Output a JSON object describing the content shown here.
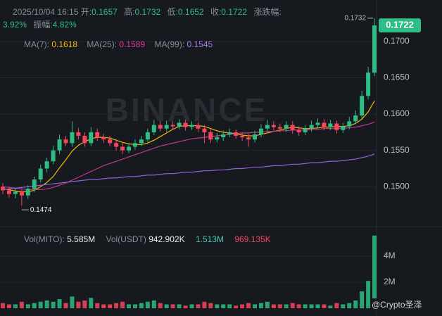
{
  "header": {
    "date": "2025/10/04 16:15",
    "open_label": "开:",
    "open": "0.1657",
    "high_label": "高:",
    "high": "0.1732",
    "low_label": "低:",
    "low": "0.1652",
    "close_label": "收:",
    "close": "0.1722",
    "change_label": "涨跌幅:",
    "change": "3.92%",
    "amp_label": "振幅:",
    "amp": "4.82%"
  },
  "ma_header": {
    "ma7_label": "MA(7):",
    "ma7": "0.1618",
    "ma25_label": "MA(25):",
    "ma25": "0.1589",
    "ma99_label": "MA(99):",
    "ma99": "0.1545"
  },
  "vol_header": {
    "vol_label": "Vol(MITO):",
    "vol": "5.585M",
    "usdt_label": "Vol(USDT)",
    "usdt": "942.902K",
    "ma1": "1.513M",
    "ma2": "969.135K"
  },
  "watermark": "BINANCE",
  "credit": "@Crypto圣泽",
  "chart_data": {
    "type": "candlestick",
    "up_color": "#2ebd85",
    "down_color": "#f6465d",
    "ylim": [
      0.1447,
      0.1757
    ],
    "yticks": [
      {
        "value": 0.15,
        "label": "0.1500"
      },
      {
        "value": 0.155,
        "label": "0.1550"
      },
      {
        "value": 0.16,
        "label": "0.1600"
      },
      {
        "value": 0.165,
        "label": "0.1650"
      },
      {
        "value": 0.17,
        "label": "0.1700"
      }
    ],
    "grid": true,
    "last_price_label": "0.1722",
    "high_marker": "0.1732",
    "low_marker": "0.1474",
    "open": [
      0.15,
      0.1495,
      0.149,
      0.1493,
      0.1488,
      0.1497,
      0.151,
      0.1525,
      0.1535,
      0.155,
      0.1565,
      0.156,
      0.1575,
      0.157,
      0.156,
      0.1575,
      0.1568,
      0.1565,
      0.156,
      0.1555,
      0.155,
      0.1555,
      0.156,
      0.1565,
      0.1575,
      0.1585,
      0.158,
      0.1585,
      0.1583,
      0.1588,
      0.1582,
      0.1585,
      0.158,
      0.1575,
      0.1565,
      0.1568,
      0.1572,
      0.1575,
      0.157,
      0.1568,
      0.1565,
      0.1572,
      0.158,
      0.1585,
      0.1582,
      0.158,
      0.1585,
      0.1578,
      0.1575,
      0.158,
      0.1585,
      0.1588,
      0.1582,
      0.1587,
      0.1578,
      0.1583,
      0.159,
      0.1598,
      0.1625,
      0.1657
    ],
    "high": [
      0.1505,
      0.15,
      0.1498,
      0.1497,
      0.1502,
      0.1514,
      0.153,
      0.154,
      0.1556,
      0.1572,
      0.157,
      0.159,
      0.1581,
      0.1575,
      0.1582,
      0.158,
      0.1573,
      0.157,
      0.1565,
      0.156,
      0.156,
      0.1565,
      0.157,
      0.158,
      0.1592,
      0.159,
      0.1591,
      0.159,
      0.1593,
      0.1592,
      0.159,
      0.1589,
      0.1585,
      0.158,
      0.1574,
      0.1577,
      0.158,
      0.1579,
      0.1575,
      0.1573,
      0.1577,
      0.1586,
      0.1592,
      0.159,
      0.1587,
      0.159,
      0.159,
      0.1583,
      0.1585,
      0.1591,
      0.1594,
      0.1593,
      0.1592,
      0.1591,
      0.1588,
      0.1596,
      0.1605,
      0.1632,
      0.1665,
      0.1732
    ],
    "low": [
      0.149,
      0.1485,
      0.1484,
      0.1474,
      0.1483,
      0.1493,
      0.1506,
      0.152,
      0.1531,
      0.1545,
      0.1556,
      0.1555,
      0.1565,
      0.1555,
      0.1556,
      0.1563,
      0.156,
      0.1556,
      0.155,
      0.1545,
      0.1546,
      0.1551,
      0.1556,
      0.1561,
      0.1571,
      0.1576,
      0.1576,
      0.1578,
      0.1579,
      0.1577,
      0.1578,
      0.1575,
      0.156,
      0.156,
      0.1561,
      0.1563,
      0.1568,
      0.1566,
      0.1563,
      0.1555,
      0.1561,
      0.1568,
      0.1576,
      0.1577,
      0.1575,
      0.1576,
      0.1573,
      0.157,
      0.1571,
      0.1576,
      0.158,
      0.1578,
      0.1578,
      0.1573,
      0.1574,
      0.1579,
      0.1586,
      0.1594,
      0.162,
      0.1652
    ],
    "close": [
      0.1495,
      0.149,
      0.1493,
      0.1488,
      0.1497,
      0.151,
      0.1525,
      0.1535,
      0.155,
      0.1565,
      0.156,
      0.1575,
      0.157,
      0.156,
      0.1575,
      0.1568,
      0.1565,
      0.156,
      0.1555,
      0.155,
      0.1555,
      0.156,
      0.1565,
      0.1575,
      0.1585,
      0.158,
      0.1585,
      0.1583,
      0.1588,
      0.1582,
      0.1585,
      0.158,
      0.1575,
      0.1565,
      0.1568,
      0.1572,
      0.1575,
      0.157,
      0.1568,
      0.1565,
      0.1572,
      0.158,
      0.1585,
      0.1582,
      0.158,
      0.1585,
      0.1578,
      0.1575,
      0.158,
      0.1585,
      0.1588,
      0.1582,
      0.1587,
      0.1578,
      0.1583,
      0.159,
      0.1598,
      0.1625,
      0.1657,
      0.1722
    ],
    "series": [
      {
        "name": "MA(7)",
        "color": "#f0b90b",
        "values": [
          0.1497,
          0.1496,
          0.1494,
          0.1493,
          0.1493,
          0.1495,
          0.15,
          0.1506,
          0.1514,
          0.1526,
          0.1537,
          0.1549,
          0.1557,
          0.1562,
          0.1566,
          0.1568,
          0.1568,
          0.1567,
          0.1564,
          0.1561,
          0.1559,
          0.1558,
          0.1558,
          0.156,
          0.1564,
          0.1569,
          0.1574,
          0.1579,
          0.1583,
          0.1584,
          0.1584,
          0.1584,
          0.1583,
          0.158,
          0.1577,
          0.1575,
          0.1574,
          0.1573,
          0.1571,
          0.157,
          0.157,
          0.1572,
          0.1574,
          0.1576,
          0.1578,
          0.158,
          0.1582,
          0.1581,
          0.158,
          0.158,
          0.1581,
          0.1582,
          0.1582,
          0.1583,
          0.1583,
          0.1584,
          0.1587,
          0.1593,
          0.1603,
          0.1618
        ]
      },
      {
        "name": "MA(25)",
        "color": "#c2378c",
        "values": [
          0.15,
          0.1499,
          0.1498,
          0.1497,
          0.1496,
          0.1496,
          0.1496,
          0.1497,
          0.1499,
          0.1502,
          0.1505,
          0.1509,
          0.1513,
          0.1517,
          0.1521,
          0.1525,
          0.1529,
          0.1532,
          0.1535,
          0.1538,
          0.1541,
          0.1544,
          0.1547,
          0.155,
          0.1553,
          0.1556,
          0.1558,
          0.156,
          0.1562,
          0.1564,
          0.1566,
          0.1567,
          0.1568,
          0.1569,
          0.157,
          0.1571,
          0.1572,
          0.1573,
          0.1574,
          0.1574,
          0.1575,
          0.1575,
          0.1576,
          0.1576,
          0.1577,
          0.1577,
          0.1578,
          0.1578,
          0.1578,
          0.1579,
          0.1579,
          0.158,
          0.158,
          0.158,
          0.1581,
          0.1581,
          0.1582,
          0.1584,
          0.1586,
          0.1589
        ]
      },
      {
        "name": "MA(99)",
        "color": "#8e63d6",
        "values": [
          0.1496,
          0.1497,
          0.1498,
          0.1499,
          0.15,
          0.1501,
          0.1502,
          0.1503,
          0.1504,
          0.1505,
          0.1506,
          0.1507,
          0.1508,
          0.1509,
          0.151,
          0.151,
          0.1511,
          0.1512,
          0.1512,
          0.1513,
          0.1514,
          0.1514,
          0.1515,
          0.1516,
          0.1516,
          0.1517,
          0.1518,
          0.1518,
          0.1519,
          0.152,
          0.152,
          0.1521,
          0.1522,
          0.1522,
          0.1523,
          0.1523,
          0.1524,
          0.1525,
          0.1525,
          0.1526,
          0.1527,
          0.1527,
          0.1528,
          0.1529,
          0.1529,
          0.153,
          0.1531,
          0.1531,
          0.1532,
          0.1533,
          0.1533,
          0.1534,
          0.1535,
          0.1535,
          0.1536,
          0.1537,
          0.1538,
          0.154,
          0.1542,
          0.1545
        ]
      }
    ],
    "volume": {
      "ylim": [
        0,
        5.84
      ],
      "yticks": [
        {
          "value": 2,
          "label": "2M"
        },
        {
          "value": 4,
          "label": "4M"
        }
      ],
      "values": [
        0.4,
        0.3,
        0.3,
        0.5,
        0.3,
        0.4,
        0.5,
        0.6,
        0.5,
        0.7,
        0.4,
        0.9,
        0.5,
        0.6,
        0.8,
        0.4,
        0.3,
        0.3,
        0.4,
        0.5,
        0.3,
        0.3,
        0.4,
        0.5,
        0.6,
        0.4,
        0.3,
        0.3,
        0.3,
        0.2,
        0.3,
        0.3,
        0.5,
        0.4,
        0.3,
        0.3,
        0.3,
        0.2,
        0.3,
        0.4,
        0.3,
        0.4,
        0.5,
        0.3,
        0.3,
        0.3,
        0.4,
        0.3,
        0.3,
        0.3,
        0.3,
        0.3,
        0.2,
        0.4,
        0.3,
        0.4,
        0.6,
        1.3,
        2.1,
        5.585
      ]
    }
  }
}
